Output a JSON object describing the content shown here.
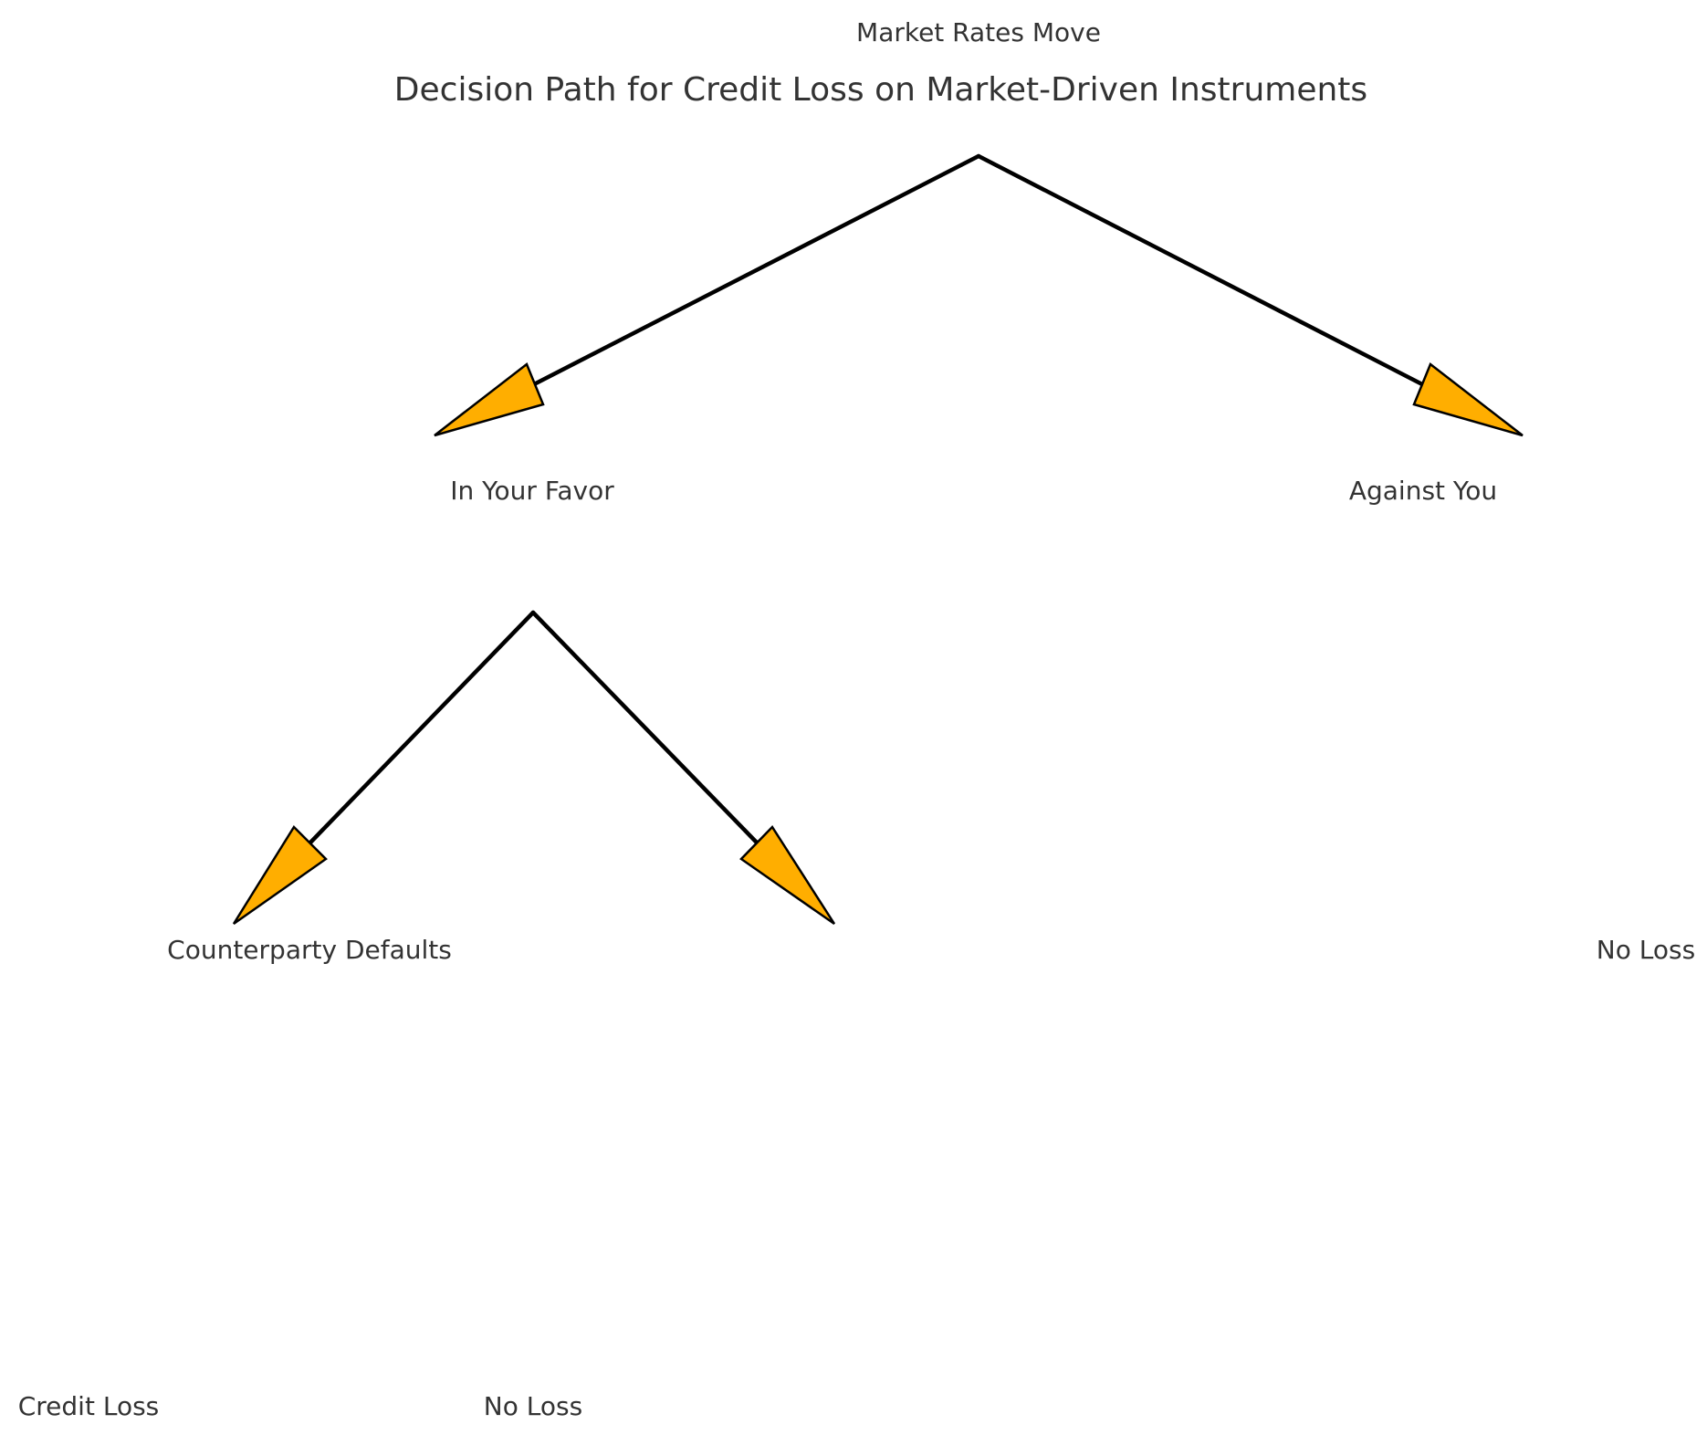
{
  "title": "Decision Path for Credit Loss on Market-Driven Instruments",
  "colors": {
    "arrow_fill": "#FFAE00",
    "line": "#000000",
    "text": "#333333",
    "background": "#FFFFFF"
  },
  "nodes": {
    "root": "Market Rates Move",
    "favor": "In Your Favor",
    "against": "Against You",
    "defaults": "Counterparty Defaults",
    "no_loss_against": "No Loss",
    "credit_loss": "Credit Loss",
    "no_loss_favor": "No Loss"
  }
}
